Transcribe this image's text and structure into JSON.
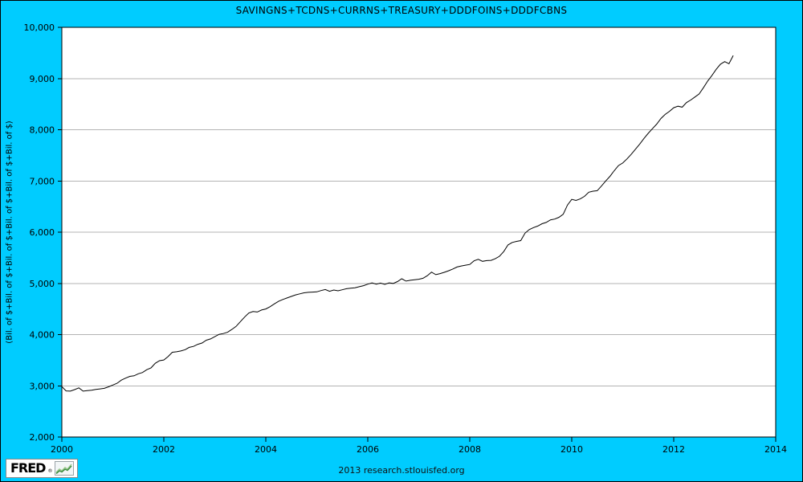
{
  "title": "SAVINGNS+TCDNS+CURRNS+TREASURY+DDDFOINS+DDDFCBNS",
  "footer": {
    "center_text": "2013 research.stlouisfed.org",
    "logo_text": "FRED",
    "logo_reg": "®"
  },
  "colors": {
    "background": "#00ccff",
    "plot_bg": "#ffffff",
    "grid": "#b3b3b3",
    "axis": "#000000",
    "line": "#000000",
    "logo_spark_dark": "#3d8c40",
    "logo_spark_light": "#9cc98f"
  },
  "chart_data": {
    "type": "line",
    "title": "SAVINGNS+TCDNS+CURRNS+TREASURY+DDDFOINS+DDDFCBNS",
    "xlabel": "",
    "ylabel": "(Bil. of $+Bil. of $+Bil. of $+Bil. of $+Bil. of $+Bil. of $)",
    "xlim": [
      2000,
      2014
    ],
    "ylim": [
      2000,
      10000
    ],
    "grid": "horizontal-only",
    "legend": "none",
    "x_ticks": [
      2000,
      2002,
      2004,
      2006,
      2008,
      2010,
      2012,
      2014
    ],
    "x_tick_labels": [
      "2000",
      "2002",
      "2004",
      "2006",
      "2008",
      "2010",
      "2012",
      "2014"
    ],
    "y_ticks": [
      2000,
      3000,
      4000,
      5000,
      6000,
      7000,
      8000,
      9000,
      10000
    ],
    "y_tick_labels": [
      "2,000",
      "3,000",
      "4,000",
      "5,000",
      "6,000",
      "7,000",
      "8,000",
      "9,000",
      "10,000"
    ],
    "x_start": 2000.0,
    "x_step_years": 0.0833333,
    "series": [
      {
        "name": "SAVINGNS+TCDNS+CURRNS+TREASURY+DDDFOINS+DDDFCBNS",
        "units": "Billions of Dollars (sum)",
        "frequency": "monthly",
        "values": [
          2985,
          2900,
          2895,
          2925,
          2960,
          2895,
          2905,
          2915,
          2930,
          2940,
          2950,
          2980,
          3015,
          3050,
          3110,
          3150,
          3185,
          3195,
          3235,
          3260,
          3315,
          3350,
          3440,
          3490,
          3505,
          3570,
          3655,
          3665,
          3680,
          3705,
          3750,
          3770,
          3810,
          3835,
          3890,
          3915,
          3960,
          4005,
          4020,
          4045,
          4100,
          4160,
          4250,
          4340,
          4420,
          4450,
          4440,
          4480,
          4500,
          4545,
          4600,
          4650,
          4685,
          4715,
          4745,
          4775,
          4795,
          4815,
          4825,
          4830,
          4835,
          4860,
          4880,
          4845,
          4870,
          4855,
          4875,
          4895,
          4905,
          4915,
          4935,
          4955,
          4985,
          5010,
          4985,
          5005,
          4980,
          5010,
          5000,
          5035,
          5090,
          5045,
          5060,
          5070,
          5080,
          5100,
          5150,
          5220,
          5170,
          5190,
          5215,
          5245,
          5280,
          5320,
          5340,
          5355,
          5370,
          5440,
          5470,
          5430,
          5445,
          5450,
          5480,
          5530,
          5620,
          5750,
          5800,
          5820,
          5835,
          5980,
          6050,
          6090,
          6120,
          6165,
          6190,
          6240,
          6255,
          6290,
          6350,
          6530,
          6640,
          6620,
          6650,
          6700,
          6780,
          6800,
          6810,
          6900,
          7000,
          7090,
          7200,
          7300,
          7350,
          7430,
          7520,
          7620,
          7720,
          7830,
          7930,
          8020,
          8110,
          8220,
          8300,
          8360,
          8430,
          8460,
          8440,
          8530,
          8580,
          8640,
          8700,
          8820,
          8950,
          9060,
          9180,
          9280,
          9330,
          9290,
          9450
        ]
      }
    ]
  }
}
